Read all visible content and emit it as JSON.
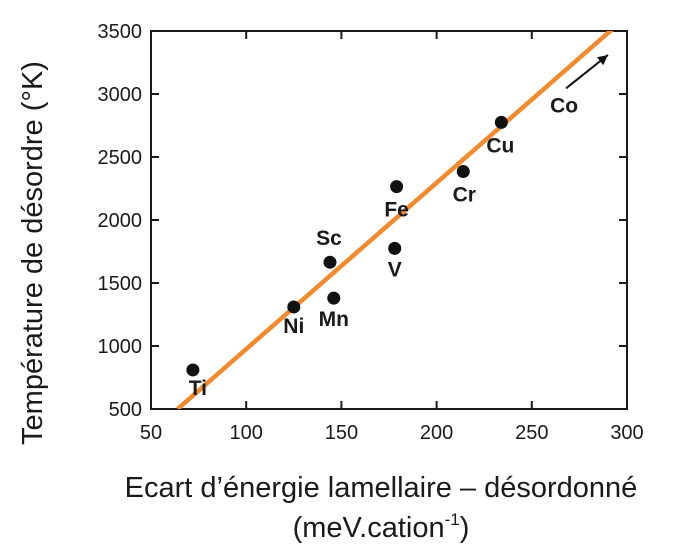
{
  "chart_data": {
    "type": "scatter",
    "xlabel": "Ecart d’énergie lamellaire – désordonné",
    "xlabel_unit_prefix": "(meV.cation",
    "xlabel_unit_sup": "-1",
    "xlabel_unit_suffix": ")",
    "ylabel": "Température de désordre (°K)",
    "xlim": [
      50,
      300
    ],
    "ylim": [
      500,
      3500
    ],
    "xticks": [
      50,
      100,
      150,
      200,
      250,
      300
    ],
    "yticks": [
      500,
      1000,
      1500,
      2000,
      2500,
      3000,
      3500
    ],
    "grid": false,
    "points": [
      {
        "label": "Ti",
        "x": 72,
        "y": 810
      },
      {
        "label": "Ni",
        "x": 125,
        "y": 1310
      },
      {
        "label": "Mn",
        "x": 146,
        "y": 1380
      },
      {
        "label": "Sc",
        "x": 144,
        "y": 1665
      },
      {
        "label": "V",
        "x": 178,
        "y": 1775
      },
      {
        "label": "Fe",
        "x": 179,
        "y": 2265
      },
      {
        "label": "Cr",
        "x": 214,
        "y": 2385
      },
      {
        "label": "Cu",
        "x": 234,
        "y": 2775
      }
    ],
    "fit_line": {
      "x": [
        64,
        295
      ],
      "y": [
        500,
        3550
      ],
      "color": "#f28a2e"
    },
    "annotation": {
      "label": "Co",
      "arrow_from": [
        268,
        3045
      ],
      "arrow_to": [
        290,
        3310
      ]
    }
  }
}
